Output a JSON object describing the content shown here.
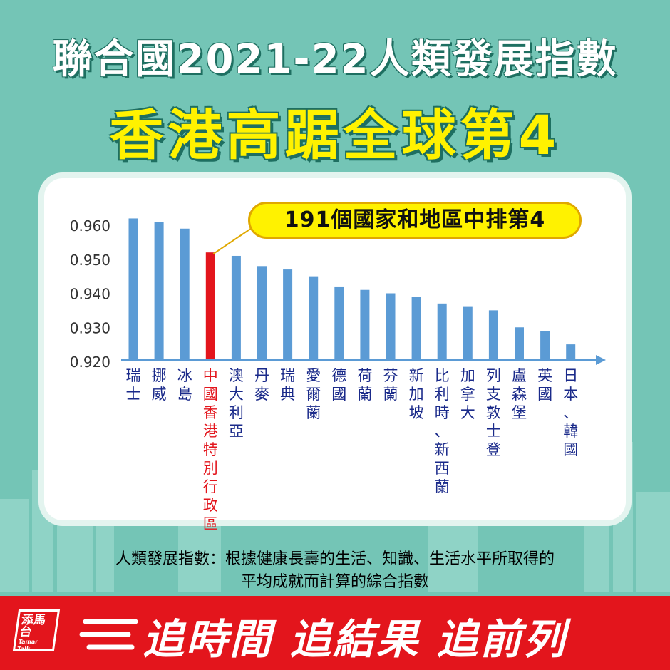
{
  "header": {
    "title_line1": "聯合國2021-22人類發展指數",
    "title_line2": "香港高踞全球第4"
  },
  "callout": "191個國家和地區中排第4",
  "chart_data": {
    "type": "bar",
    "categories": [
      "瑞士",
      "挪威",
      "冰島",
      "中國香港特別行政區",
      "澳大利亞",
      "丹麥",
      "瑞典",
      "愛爾蘭",
      "德國",
      "荷蘭",
      "芬蘭",
      "新加坡",
      "比利時、新西蘭",
      "加拿大",
      "列支敦士登",
      "盧森堡",
      "英國",
      "日本、韓國"
    ],
    "values": [
      0.962,
      0.961,
      0.959,
      0.952,
      0.951,
      0.948,
      0.947,
      0.945,
      0.942,
      0.941,
      0.94,
      0.939,
      0.937,
      0.936,
      0.935,
      0.93,
      0.929,
      0.925
    ],
    "highlight_index": 3,
    "ylim": [
      0.917,
      0.9625
    ],
    "yticks": [
      "0.920",
      "0.930",
      "0.940",
      "0.950",
      "0.960"
    ],
    "ytick_values": [
      0.92,
      0.93,
      0.94,
      0.95,
      0.96
    ],
    "colors": {
      "bar": "#5b9bd5",
      "highlight": "#e3151c",
      "label": "#1a2a8a",
      "axis": "#5b9bd5"
    },
    "grid": false
  },
  "footnote": {
    "line1": "人類發展指數：根據健康長壽的生活、知識、生活水平所取得的",
    "line2": "平均成就而計算的綜合指數"
  },
  "banner": {
    "logo_main": "添馬台",
    "logo_sub": "Tamar Talk",
    "slogan": "追時間 追結果 追前列"
  },
  "icons": {
    "logo": "tamar-talk-logo-icon",
    "speed": "speed-lines-icon"
  },
  "colors": {
    "background": "#74c5b6",
    "title_yellow": "#fff200",
    "banner_red": "#e3151c"
  }
}
